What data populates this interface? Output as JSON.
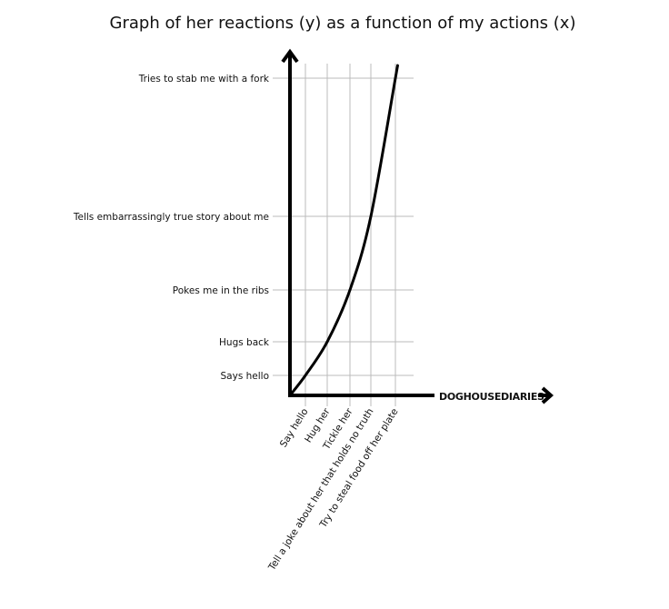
{
  "chart_data": {
    "type": "line",
    "title": "Graph of her reactions (y) as a function of my actions (x)",
    "xlabel": "",
    "ylabel": "",
    "x_categories": [
      "Say hello",
      "Hug her",
      "Tickle her",
      "Tell a joke about her that holds no truth",
      "Try to steal food off her plate"
    ],
    "y_categories": [
      "Says hello",
      "Hugs back",
      "Pokes me in the ribs",
      "Tells embarrassingly true story about me",
      "Tries to stab me with a fork"
    ],
    "series": [
      {
        "points": [
          {
            "x": "Say hello",
            "y": "Says hello"
          },
          {
            "x": "Hug her",
            "y": "Hugs back"
          },
          {
            "x": "Tickle her",
            "y": "Pokes me in the ribs"
          },
          {
            "x": "Tell a joke about her that holds no truth",
            "y": "Tells embarrassingly true story about me"
          },
          {
            "x": "Try to steal food off her plate",
            "y": "Tries to stab me with a fork"
          }
        ]
      }
    ],
    "curve": "increasing, convex, starting at origin",
    "grid": true,
    "watermark": "DOGHOUSEDIARIES",
    "colors": {
      "axis": "#000000",
      "grid": "#bbbbbb",
      "curve": "#000000"
    }
  }
}
